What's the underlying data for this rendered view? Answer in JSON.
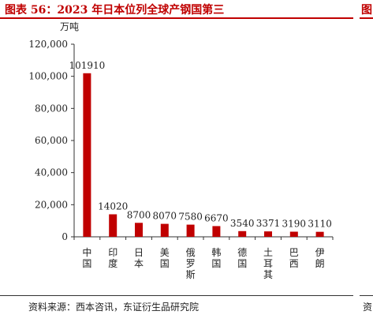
{
  "figure": {
    "title": "图表 56：2023 年日本位列全球产钢国第三",
    "source": "资料来源：西本咨讯，东证衍生品研究院",
    "next_title_fragment": "图",
    "next_source_fragment": "资"
  },
  "colors": {
    "accent": "#c00000",
    "bar": "#c00000",
    "axis": "#333333"
  },
  "chart_data": {
    "type": "bar",
    "title": "2023 年日本位列全球产钢国第三",
    "ylabel": "万吨",
    "ylim": [
      0,
      120000
    ],
    "yticks": [
      0,
      20000,
      40000,
      60000,
      80000,
      100000,
      120000
    ],
    "ytick_labels": [
      "0",
      "20,000",
      "40,000",
      "60,000",
      "80,000",
      "100,000",
      "120,000"
    ],
    "grid": false,
    "categories": [
      "中国",
      "印度",
      "日本",
      "美国",
      "俄罗斯",
      "韩国",
      "德国",
      "土耳其",
      "巴西",
      "伊朗"
    ],
    "values": [
      101910,
      14020,
      8700,
      8070,
      7580,
      6670,
      3540,
      3371,
      3190,
      3110
    ],
    "data_labels": [
      "101910",
      "14020",
      "8700",
      "8070",
      "7580",
      "6670",
      "3540",
      "3371",
      "3190",
      "3110"
    ]
  }
}
